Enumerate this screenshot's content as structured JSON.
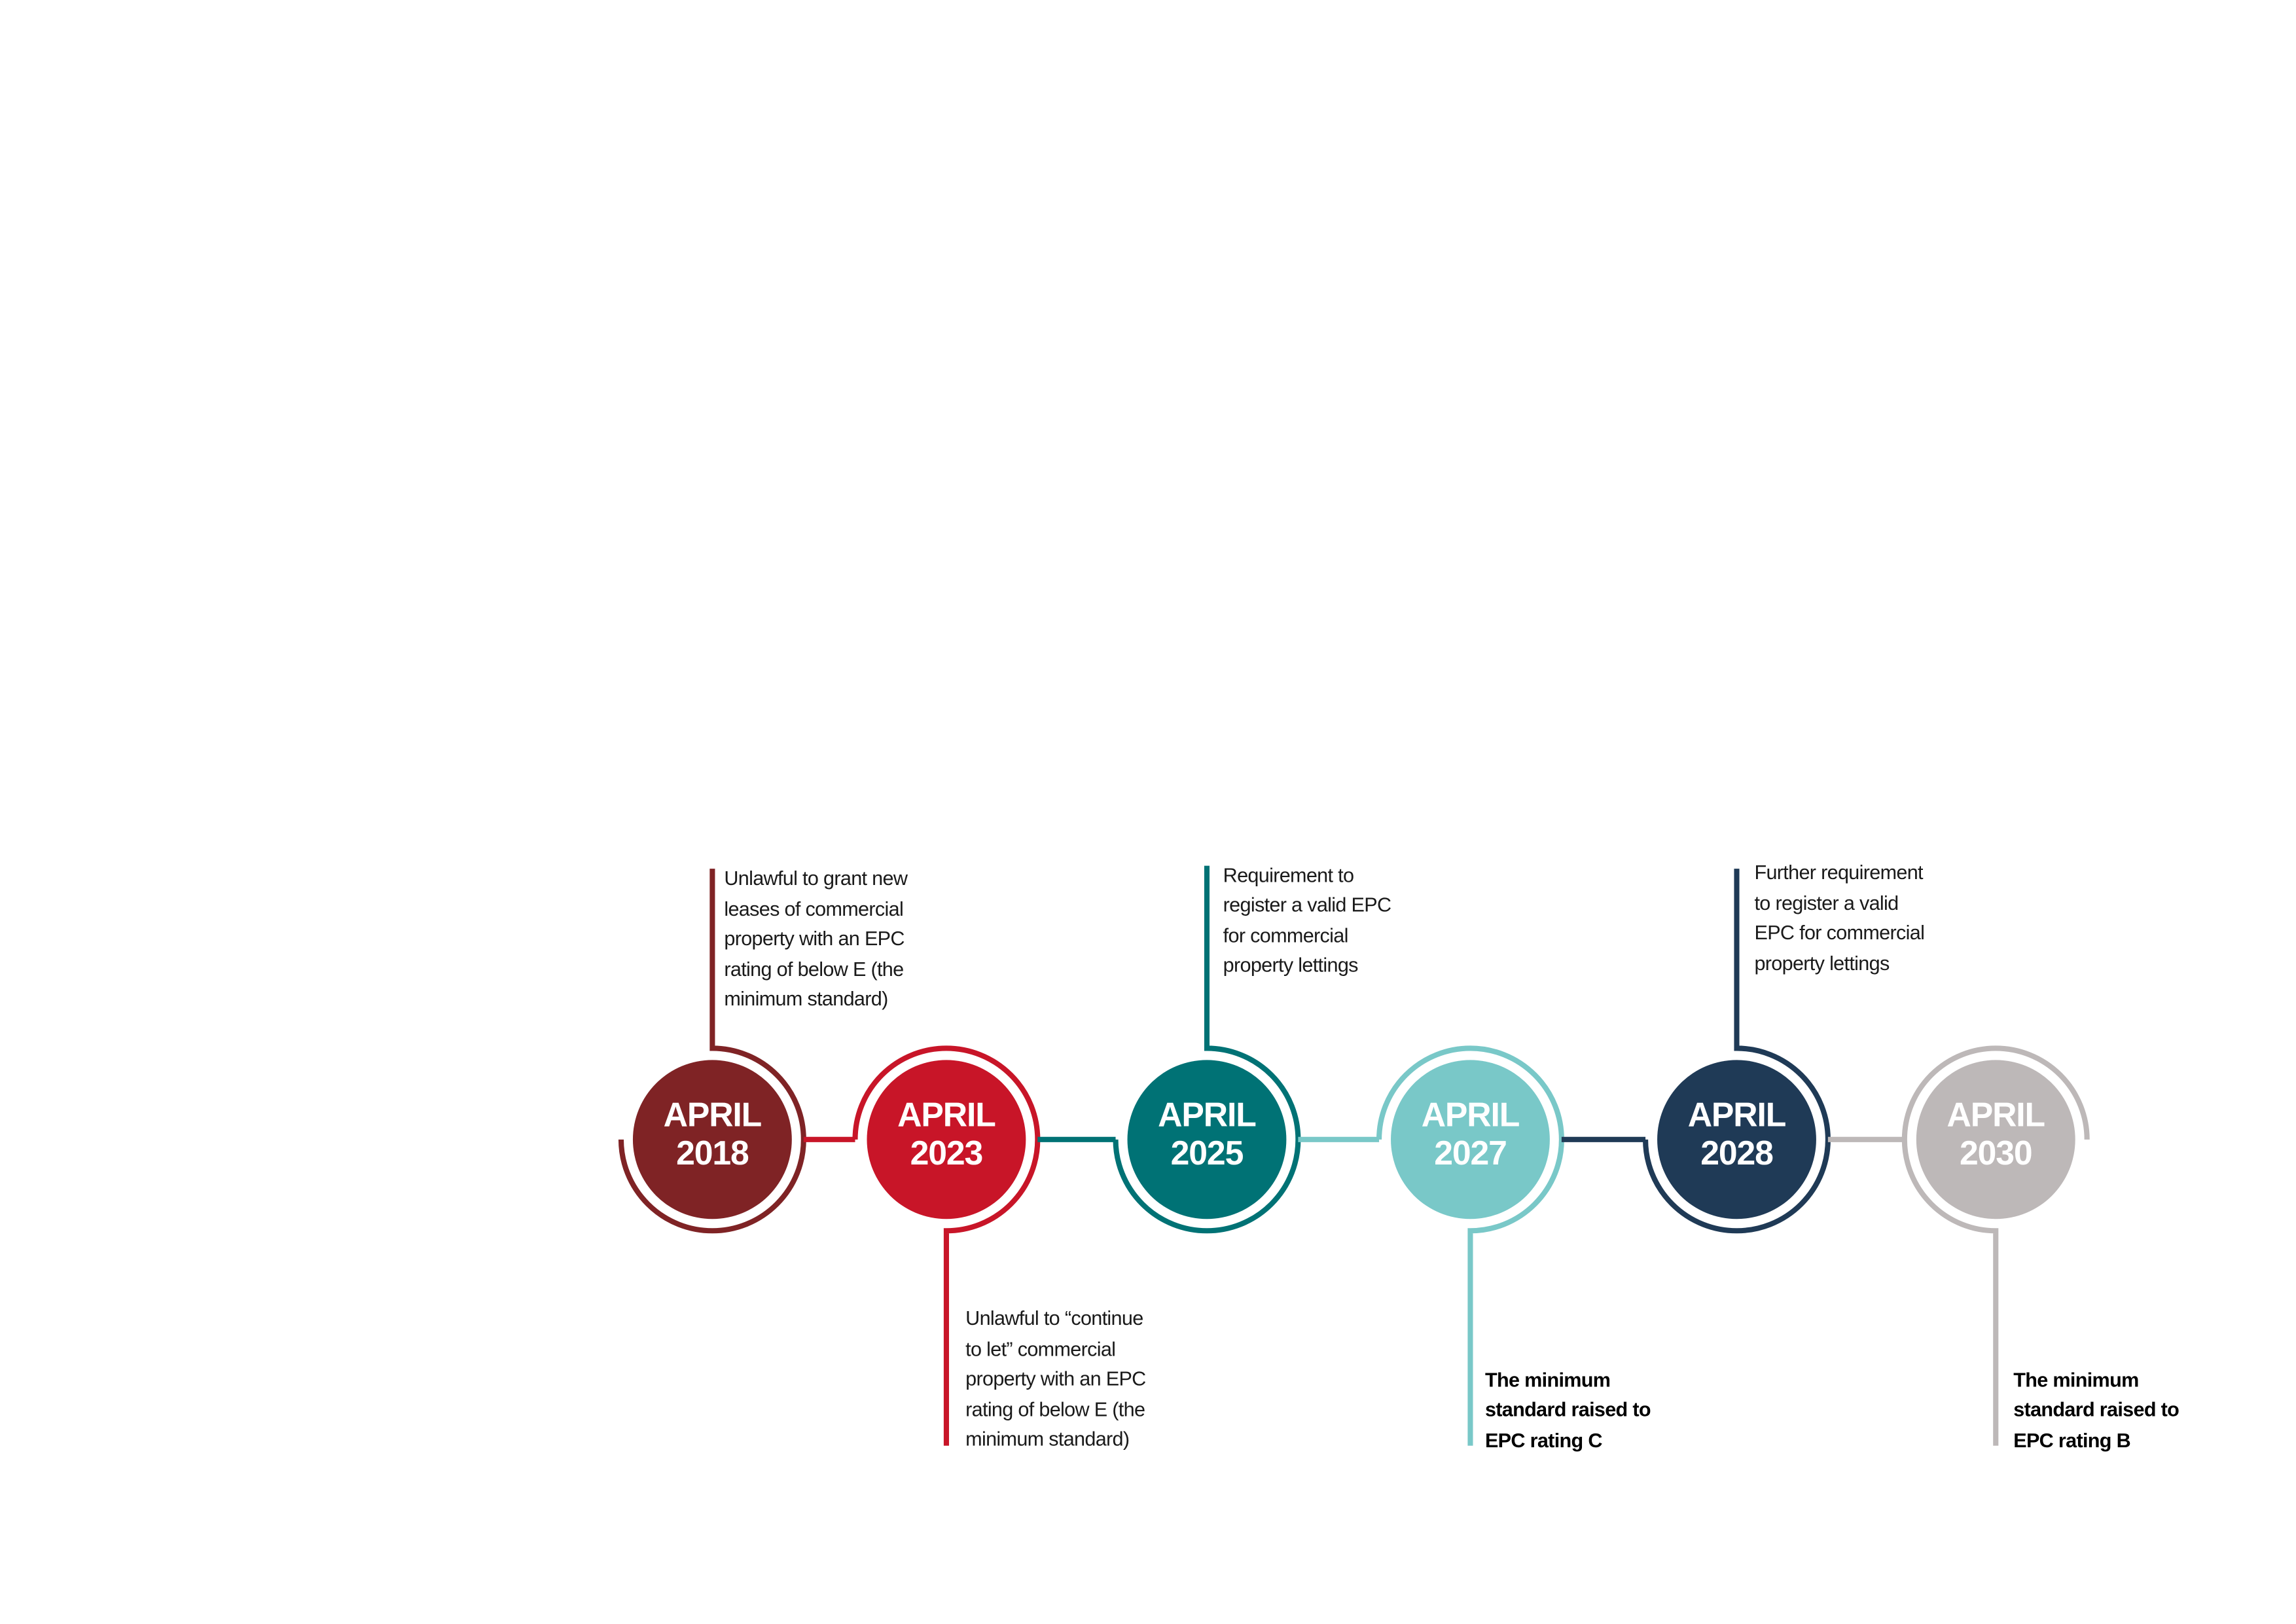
{
  "events": [
    {
      "month": "APRIL",
      "year": "2018",
      "color": "#7f2325",
      "position": "top",
      "bold": false,
      "lines": [
        "Unlawful to grant new",
        "leases of commercial",
        "property with an EPC",
        "rating of below E (the",
        "minimum standard)"
      ]
    },
    {
      "month": "APRIL",
      "year": "2023",
      "color": "#c81528",
      "position": "bottom",
      "bold": false,
      "lines": [
        "Unlawful to “continue",
        "to let” commercial",
        "property with an EPC",
        "rating of below E (the",
        "minimum standard)"
      ]
    },
    {
      "month": "APRIL",
      "year": "2025",
      "color": "#007275",
      "position": "top",
      "bold": false,
      "lines": [
        "Requirement to",
        "register a valid EPC",
        "for commercial",
        "property lettings"
      ]
    },
    {
      "month": "APRIL",
      "year": "2027",
      "color": "#79c8c8",
      "position": "bottom",
      "bold": true,
      "lines": [
        "The minimum",
        "standard raised to",
        "EPC rating C"
      ]
    },
    {
      "month": "APRIL",
      "year": "2028",
      "color": "#1f3a56",
      "position": "top",
      "bold": false,
      "lines": [
        "Further requirement",
        "to register a valid",
        "EPC for commercial",
        "property lettings"
      ]
    },
    {
      "month": "APRIL",
      "year": "2030",
      "color": "#bdb8b8",
      "position": "bottom",
      "bold": true,
      "lines": [
        "The minimum",
        "standard raised to",
        "EPC rating B"
      ]
    }
  ]
}
